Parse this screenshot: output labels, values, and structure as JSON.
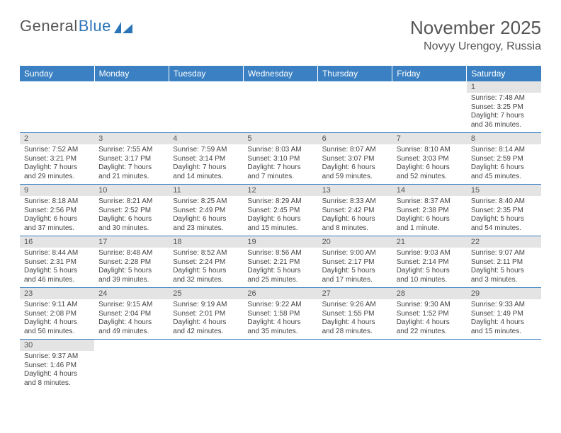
{
  "logo": {
    "general": "General",
    "blue": "Blue"
  },
  "header": {
    "month_year": "November 2025",
    "location": "Novyy Urengoy, Russia"
  },
  "colors": {
    "header_bg": "#3a80c2",
    "header_text": "#ffffff",
    "daynum_bg": "#e4e4e4",
    "row_border": "#3a80c2",
    "text": "#444444"
  },
  "day_names": [
    "Sunday",
    "Monday",
    "Tuesday",
    "Wednesday",
    "Thursday",
    "Friday",
    "Saturday"
  ],
  "weeks": [
    [
      {
        "day": "",
        "sunrise": "",
        "sunset": "",
        "daylight": ""
      },
      {
        "day": "",
        "sunrise": "",
        "sunset": "",
        "daylight": ""
      },
      {
        "day": "",
        "sunrise": "",
        "sunset": "",
        "daylight": ""
      },
      {
        "day": "",
        "sunrise": "",
        "sunset": "",
        "daylight": ""
      },
      {
        "day": "",
        "sunrise": "",
        "sunset": "",
        "daylight": ""
      },
      {
        "day": "",
        "sunrise": "",
        "sunset": "",
        "daylight": ""
      },
      {
        "day": "1",
        "sunrise": "Sunrise: 7:48 AM",
        "sunset": "Sunset: 3:25 PM",
        "daylight": "Daylight: 7 hours and 36 minutes."
      }
    ],
    [
      {
        "day": "2",
        "sunrise": "Sunrise: 7:52 AM",
        "sunset": "Sunset: 3:21 PM",
        "daylight": "Daylight: 7 hours and 29 minutes."
      },
      {
        "day": "3",
        "sunrise": "Sunrise: 7:55 AM",
        "sunset": "Sunset: 3:17 PM",
        "daylight": "Daylight: 7 hours and 21 minutes."
      },
      {
        "day": "4",
        "sunrise": "Sunrise: 7:59 AM",
        "sunset": "Sunset: 3:14 PM",
        "daylight": "Daylight: 7 hours and 14 minutes."
      },
      {
        "day": "5",
        "sunrise": "Sunrise: 8:03 AM",
        "sunset": "Sunset: 3:10 PM",
        "daylight": "Daylight: 7 hours and 7 minutes."
      },
      {
        "day": "6",
        "sunrise": "Sunrise: 8:07 AM",
        "sunset": "Sunset: 3:07 PM",
        "daylight": "Daylight: 6 hours and 59 minutes."
      },
      {
        "day": "7",
        "sunrise": "Sunrise: 8:10 AM",
        "sunset": "Sunset: 3:03 PM",
        "daylight": "Daylight: 6 hours and 52 minutes."
      },
      {
        "day": "8",
        "sunrise": "Sunrise: 8:14 AM",
        "sunset": "Sunset: 2:59 PM",
        "daylight": "Daylight: 6 hours and 45 minutes."
      }
    ],
    [
      {
        "day": "9",
        "sunrise": "Sunrise: 8:18 AM",
        "sunset": "Sunset: 2:56 PM",
        "daylight": "Daylight: 6 hours and 37 minutes."
      },
      {
        "day": "10",
        "sunrise": "Sunrise: 8:21 AM",
        "sunset": "Sunset: 2:52 PM",
        "daylight": "Daylight: 6 hours and 30 minutes."
      },
      {
        "day": "11",
        "sunrise": "Sunrise: 8:25 AM",
        "sunset": "Sunset: 2:49 PM",
        "daylight": "Daylight: 6 hours and 23 minutes."
      },
      {
        "day": "12",
        "sunrise": "Sunrise: 8:29 AM",
        "sunset": "Sunset: 2:45 PM",
        "daylight": "Daylight: 6 hours and 15 minutes."
      },
      {
        "day": "13",
        "sunrise": "Sunrise: 8:33 AM",
        "sunset": "Sunset: 2:42 PM",
        "daylight": "Daylight: 6 hours and 8 minutes."
      },
      {
        "day": "14",
        "sunrise": "Sunrise: 8:37 AM",
        "sunset": "Sunset: 2:38 PM",
        "daylight": "Daylight: 6 hours and 1 minute."
      },
      {
        "day": "15",
        "sunrise": "Sunrise: 8:40 AM",
        "sunset": "Sunset: 2:35 PM",
        "daylight": "Daylight: 5 hours and 54 minutes."
      }
    ],
    [
      {
        "day": "16",
        "sunrise": "Sunrise: 8:44 AM",
        "sunset": "Sunset: 2:31 PM",
        "daylight": "Daylight: 5 hours and 46 minutes."
      },
      {
        "day": "17",
        "sunrise": "Sunrise: 8:48 AM",
        "sunset": "Sunset: 2:28 PM",
        "daylight": "Daylight: 5 hours and 39 minutes."
      },
      {
        "day": "18",
        "sunrise": "Sunrise: 8:52 AM",
        "sunset": "Sunset: 2:24 PM",
        "daylight": "Daylight: 5 hours and 32 minutes."
      },
      {
        "day": "19",
        "sunrise": "Sunrise: 8:56 AM",
        "sunset": "Sunset: 2:21 PM",
        "daylight": "Daylight: 5 hours and 25 minutes."
      },
      {
        "day": "20",
        "sunrise": "Sunrise: 9:00 AM",
        "sunset": "Sunset: 2:17 PM",
        "daylight": "Daylight: 5 hours and 17 minutes."
      },
      {
        "day": "21",
        "sunrise": "Sunrise: 9:03 AM",
        "sunset": "Sunset: 2:14 PM",
        "daylight": "Daylight: 5 hours and 10 minutes."
      },
      {
        "day": "22",
        "sunrise": "Sunrise: 9:07 AM",
        "sunset": "Sunset: 2:11 PM",
        "daylight": "Daylight: 5 hours and 3 minutes."
      }
    ],
    [
      {
        "day": "23",
        "sunrise": "Sunrise: 9:11 AM",
        "sunset": "Sunset: 2:08 PM",
        "daylight": "Daylight: 4 hours and 56 minutes."
      },
      {
        "day": "24",
        "sunrise": "Sunrise: 9:15 AM",
        "sunset": "Sunset: 2:04 PM",
        "daylight": "Daylight: 4 hours and 49 minutes."
      },
      {
        "day": "25",
        "sunrise": "Sunrise: 9:19 AM",
        "sunset": "Sunset: 2:01 PM",
        "daylight": "Daylight: 4 hours and 42 minutes."
      },
      {
        "day": "26",
        "sunrise": "Sunrise: 9:22 AM",
        "sunset": "Sunset: 1:58 PM",
        "daylight": "Daylight: 4 hours and 35 minutes."
      },
      {
        "day": "27",
        "sunrise": "Sunrise: 9:26 AM",
        "sunset": "Sunset: 1:55 PM",
        "daylight": "Daylight: 4 hours and 28 minutes."
      },
      {
        "day": "28",
        "sunrise": "Sunrise: 9:30 AM",
        "sunset": "Sunset: 1:52 PM",
        "daylight": "Daylight: 4 hours and 22 minutes."
      },
      {
        "day": "29",
        "sunrise": "Sunrise: 9:33 AM",
        "sunset": "Sunset: 1:49 PM",
        "daylight": "Daylight: 4 hours and 15 minutes."
      }
    ],
    [
      {
        "day": "30",
        "sunrise": "Sunrise: 9:37 AM",
        "sunset": "Sunset: 1:46 PM",
        "daylight": "Daylight: 4 hours and 8 minutes."
      },
      {
        "day": "",
        "sunrise": "",
        "sunset": "",
        "daylight": ""
      },
      {
        "day": "",
        "sunrise": "",
        "sunset": "",
        "daylight": ""
      },
      {
        "day": "",
        "sunrise": "",
        "sunset": "",
        "daylight": ""
      },
      {
        "day": "",
        "sunrise": "",
        "sunset": "",
        "daylight": ""
      },
      {
        "day": "",
        "sunrise": "",
        "sunset": "",
        "daylight": ""
      },
      {
        "day": "",
        "sunrise": "",
        "sunset": "",
        "daylight": ""
      }
    ]
  ]
}
